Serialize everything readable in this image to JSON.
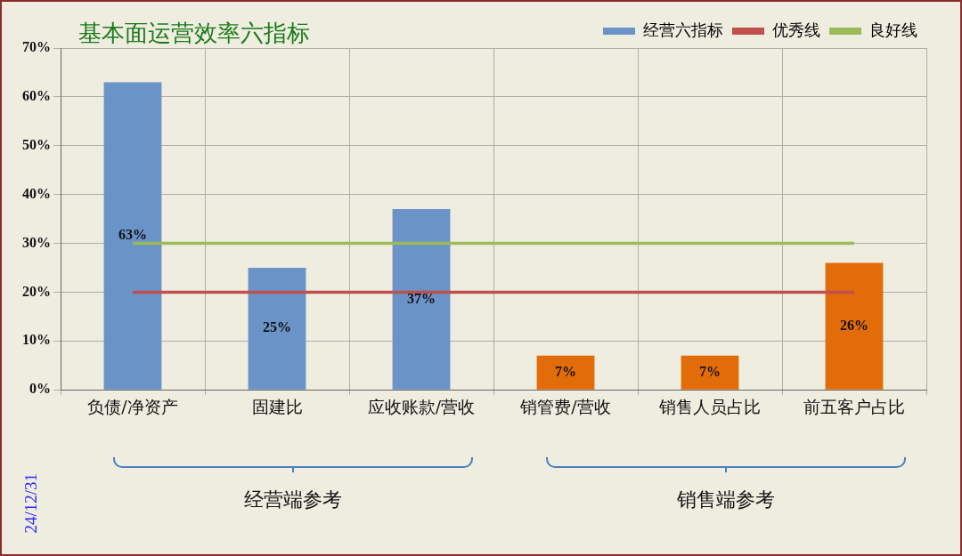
{
  "chart_data": {
    "type": "bar",
    "title": "基本面运营效率六指标",
    "categories": [
      "负债/净资产",
      "固建比",
      "应收账款/营收",
      "销管费/营收",
      "销售人员占比",
      "前五客户占比"
    ],
    "series": [
      {
        "name": "经营六指标",
        "color": "#6a93c8",
        "colors": [
          "#6a93c8",
          "#6a93c8",
          "#6a93c8",
          "#e36c0a",
          "#e36c0a",
          "#e36c0a"
        ],
        "values": [
          63,
          25,
          37,
          7,
          7,
          26
        ],
        "value_labels": [
          "63%",
          "25%",
          "37%",
          "7%",
          "7%",
          "26%"
        ]
      },
      {
        "name": "优秀线",
        "type": "line",
        "color": "#c0504d",
        "values": [
          20,
          20,
          20,
          20,
          20,
          20
        ]
      },
      {
        "name": "良好线",
        "type": "line",
        "color": "#9bbb59",
        "values": [
          30,
          30,
          30,
          30,
          30,
          30
        ]
      }
    ],
    "ylim": [
      0,
      70
    ],
    "yticks": [
      {
        "value": 0,
        "label": "0%"
      },
      {
        "value": 10,
        "label": "10%"
      },
      {
        "value": 20,
        "label": "20%"
      },
      {
        "value": 30,
        "label": "30%"
      },
      {
        "value": 40,
        "label": "40%"
      },
      {
        "value": 50,
        "label": "50%"
      },
      {
        "value": 60,
        "label": "60%"
      },
      {
        "value": 70,
        "label": "70%"
      }
    ],
    "grid": true,
    "legend": "top right",
    "marker": "none",
    "annotations": [
      "经营端参考",
      "销售端参考",
      "24/12/31"
    ]
  }
}
